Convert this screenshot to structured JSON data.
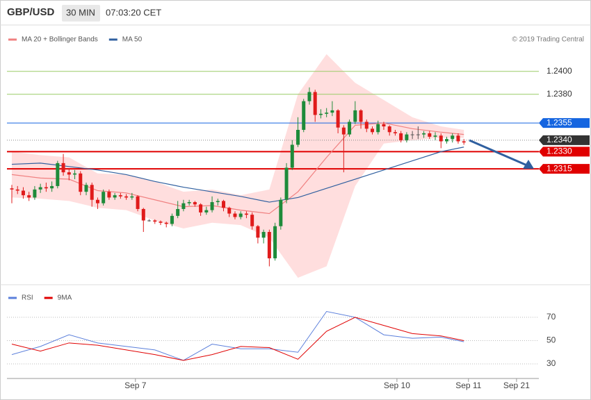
{
  "chart_data": [
    {
      "type": "candlestick",
      "title": "GBP/USD",
      "timeframe": "30 MIN",
      "time": "07:03:20 CET",
      "credit": "© 2019 Trading Central",
      "up_color": "#1e8b3a",
      "down_color": "#e01b1b",
      "flat_color": "#555555",
      "xlim": [
        -0.85,
        92.1
      ],
      "ylim": [
        1.2217,
        1.2438
      ],
      "open": [
        1.2298,
        1.2297,
        1.2296,
        1.2292,
        1.229,
        1.2297,
        1.2299,
        1.2298,
        1.23,
        1.232,
        1.2312,
        1.231,
        1.2311,
        1.2295,
        1.2301,
        1.2288,
        1.2285,
        1.2295,
        1.229,
        1.2292,
        1.2291,
        1.229,
        1.2291,
        1.228,
        1.227,
        1.227,
        1.2269,
        1.2268,
        1.2267,
        1.2274,
        1.228,
        1.2285,
        1.2286,
        1.2284,
        1.2277,
        1.2279,
        1.2286,
        1.2287,
        1.2281,
        1.2276,
        1.2273,
        1.2276,
        1.2275,
        1.2265,
        1.2255,
        1.226,
        1.2237,
        1.2265,
        1.2288,
        1.2316,
        1.2336,
        1.2349,
        1.2374,
        1.2382,
        1.2362,
        1.2363,
        1.2364,
        1.2366,
        1.2351,
        1.2345,
        1.2356,
        1.2366,
        1.2356,
        1.235,
        1.2347,
        1.2354,
        1.2352,
        1.2347,
        1.2346,
        1.234,
        1.2345,
        1.2345,
        1.2345,
        1.2346,
        1.2343,
        1.2344,
        1.2339,
        1.2341,
        1.2344,
        1.2339
      ],
      "high": [
        1.2301,
        1.23,
        1.2299,
        1.2295,
        1.23,
        1.2302,
        1.2303,
        1.2304,
        1.2322,
        1.2328,
        1.2315,
        1.2314,
        1.2313,
        1.2303,
        1.2303,
        1.229,
        1.2297,
        1.2297,
        1.2294,
        1.2294,
        1.2293,
        1.2294,
        1.2292,
        1.2281,
        1.2271,
        1.2271,
        1.227,
        1.2269,
        1.2276,
        1.2287,
        1.2288,
        1.2288,
        1.2287,
        1.2285,
        1.2282,
        1.2291,
        1.2289,
        1.2288,
        1.2282,
        1.2278,
        1.2278,
        1.2278,
        1.2277,
        1.2266,
        1.2262,
        1.2262,
        1.2268,
        1.229,
        1.232,
        1.234,
        1.236,
        1.2376,
        1.2386,
        1.2384,
        1.2367,
        1.2368,
        1.2374,
        1.2367,
        1.2353,
        1.2358,
        1.2374,
        1.2367,
        1.2358,
        1.2352,
        1.2357,
        1.2356,
        1.2353,
        1.2349,
        1.2348,
        1.2347,
        1.2348,
        1.2352,
        1.2348,
        1.2348,
        1.2347,
        1.2346,
        1.2343,
        1.2346,
        1.2346,
        1.2341
      ],
      "low": [
        1.2285,
        1.2293,
        1.2289,
        1.2287,
        1.2288,
        1.2294,
        1.2295,
        1.2295,
        1.2298,
        1.2309,
        1.2305,
        1.2306,
        1.2292,
        1.2292,
        1.2282,
        1.228,
        1.2283,
        1.2288,
        1.2288,
        1.2289,
        1.2288,
        1.2288,
        1.2278,
        1.226,
        1.2269,
        1.2267,
        1.2266,
        1.2264,
        1.2265,
        1.2272,
        1.2278,
        1.2283,
        1.2282,
        1.2274,
        1.2275,
        1.2277,
        1.2283,
        1.2278,
        1.2273,
        1.2271,
        1.2271,
        1.2272,
        1.2262,
        1.225,
        1.225,
        1.223,
        1.2235,
        1.2262,
        1.2285,
        1.2314,
        1.2334,
        1.2347,
        1.2371,
        1.2356,
        1.2359,
        1.236,
        1.2361,
        1.2346,
        1.2312,
        1.2343,
        1.2354,
        1.235,
        1.2347,
        1.2345,
        1.2345,
        1.2349,
        1.2344,
        1.2344,
        1.2338,
        1.2338,
        1.2341,
        1.2341,
        1.2342,
        1.2341,
        1.234,
        1.2333,
        1.2337,
        1.2338,
        1.2337,
        1.2336
      ],
      "close": [
        1.2297,
        1.2296,
        1.2292,
        1.229,
        1.2297,
        1.2299,
        1.2298,
        1.23,
        1.232,
        1.2312,
        1.231,
        1.2311,
        1.2295,
        1.2301,
        1.2288,
        1.2285,
        1.2295,
        1.229,
        1.2292,
        1.2291,
        1.229,
        1.2291,
        1.228,
        1.227,
        1.227,
        1.2269,
        1.2268,
        1.2267,
        1.2274,
        1.228,
        1.2285,
        1.2286,
        1.2284,
        1.2277,
        1.2279,
        1.2286,
        1.2287,
        1.2281,
        1.2276,
        1.2273,
        1.2276,
        1.2275,
        1.2265,
        1.2255,
        1.226,
        1.2237,
        1.2265,
        1.2288,
        1.2316,
        1.2336,
        1.2349,
        1.2374,
        1.2382,
        1.2362,
        1.2363,
        1.2364,
        1.2366,
        1.2351,
        1.2345,
        1.2356,
        1.2366,
        1.2356,
        1.235,
        1.2347,
        1.2354,
        1.2352,
        1.2347,
        1.2346,
        1.234,
        1.2345,
        1.2345,
        1.2345,
        1.2346,
        1.2343,
        1.2344,
        1.2339,
        1.2341,
        1.2344,
        1.2339,
        1.2338
      ],
      "series": [
        {
          "name": "MA 20 + Bollinger Bands",
          "color": "#f08080",
          "band_color": "#ffdede",
          "x": [
            0,
            5,
            10,
            15,
            20,
            25,
            30,
            35,
            40,
            45,
            50,
            55,
            60,
            65,
            70,
            75,
            79
          ],
          "values": [
            1.231,
            1.2307,
            1.2306,
            1.2296,
            1.2294,
            1.2288,
            1.2282,
            1.2283,
            1.2279,
            1.2276,
            1.2295,
            1.2325,
            1.2353,
            1.2355,
            1.235,
            1.2347,
            1.2345
          ],
          "upper": [
            1.233,
            1.2327,
            1.2325,
            1.2311,
            1.231,
            1.2304,
            1.2295,
            1.2297,
            1.2292,
            1.2297,
            1.238,
            1.2415,
            1.239,
            1.2375,
            1.236,
            1.2352,
            1.2349
          ],
          "lower": [
            1.229,
            1.2289,
            1.2287,
            1.2281,
            1.2279,
            1.227,
            1.2263,
            1.2268,
            1.2266,
            1.2255,
            1.222,
            1.223,
            1.23,
            1.2337,
            1.234,
            1.2342,
            1.2342
          ]
        },
        {
          "name": "MA 50",
          "color": "#2f5f9f",
          "x": [
            0,
            5,
            10,
            15,
            20,
            25,
            30,
            35,
            40,
            45,
            50,
            55,
            60,
            65,
            70,
            75,
            79
          ],
          "values": [
            1.2319,
            1.232,
            1.2317,
            1.2314,
            1.231,
            1.2304,
            1.2299,
            1.2295,
            1.2291,
            1.2286,
            1.229,
            1.2298,
            1.2306,
            1.2314,
            1.2322,
            1.233,
            1.2334
          ]
        }
      ],
      "levels": [
        {
          "value": 1.24,
          "label": "1.2400",
          "color": "#99cc66",
          "style": "solid",
          "box": false
        },
        {
          "value": 1.238,
          "label": "1.2380",
          "color": "#99cc66",
          "style": "solid",
          "box": false
        },
        {
          "value": 1.2355,
          "label": "1.2355",
          "color": "#1565e0",
          "style": "solid",
          "box": true
        },
        {
          "value": 1.234,
          "label": "1.2340",
          "color": "#333333",
          "style": "dotted",
          "box": true
        },
        {
          "value": 1.233,
          "label": "1.2330",
          "color": "#e00000",
          "style": "thick",
          "box": true
        },
        {
          "value": 1.2315,
          "label": "1.2315",
          "color": "#e00000",
          "style": "thick",
          "box": true
        }
      ]
    },
    {
      "type": "line",
      "xlim": [
        -0.85,
        92.1
      ],
      "ylim": [
        17.5,
        92
      ],
      "yticks": [
        30,
        50,
        70
      ],
      "xticks": [
        {
          "value": 21.6,
          "label": "Sep 7"
        },
        {
          "value": 67.3,
          "label": "Sep 10"
        },
        {
          "value": 79.8,
          "label": "Sep 11"
        },
        {
          "value": 88.2,
          "label": "Sep 21"
        }
      ],
      "series": [
        {
          "name": "RSI",
          "color": "#5b7fdb",
          "x": [
            0,
            5,
            10,
            15,
            20,
            25,
            30,
            35,
            40,
            45,
            50,
            55,
            60,
            65,
            70,
            75,
            79
          ],
          "values": [
            38,
            45,
            55,
            48,
            45,
            42,
            33,
            47,
            43,
            43,
            40,
            75,
            70,
            55,
            52,
            53,
            49
          ]
        },
        {
          "name": "9MA",
          "color": "#e00000",
          "x": [
            0,
            5,
            10,
            15,
            20,
            25,
            30,
            35,
            40,
            45,
            50,
            55,
            60,
            65,
            70,
            75,
            79
          ],
          "values": [
            47,
            41,
            48,
            46,
            42,
            38,
            33,
            38,
            45,
            44,
            34,
            58,
            70,
            63,
            56,
            54,
            50
          ]
        }
      ]
    }
  ]
}
